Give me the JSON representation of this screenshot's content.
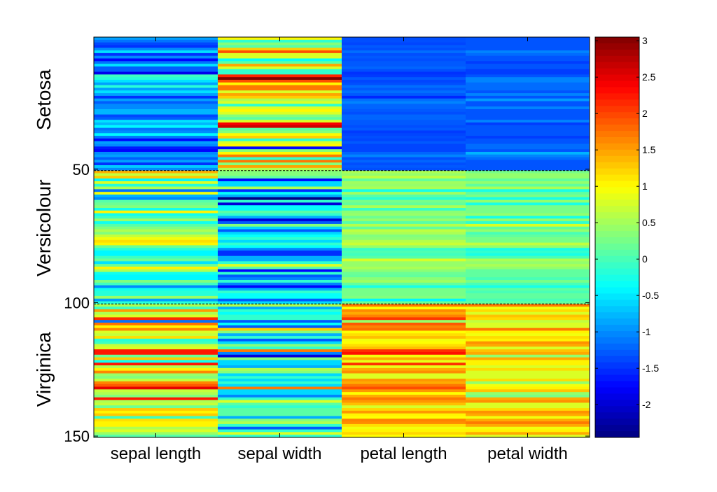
{
  "chart_data": {
    "type": "heatmap",
    "title": "",
    "colormap": "jet",
    "clim": [
      -2.45,
      3.05
    ],
    "columns": [
      "sepal length",
      "sepal width",
      "petal length",
      "petal width"
    ],
    "group_labels": [
      "Setosa",
      "Versicolour",
      "Virginica"
    ],
    "y_ticks": [
      50,
      100,
      150
    ],
    "y_tick_labels": [
      "50",
      "100",
      "150"
    ],
    "y_range": [
      0.5,
      150.5
    ],
    "group_separators": [
      50,
      100,
      150
    ],
    "colorbar_ticks": [
      3,
      2.5,
      2,
      1.5,
      1,
      0.5,
      0,
      -0.5,
      -1,
      -1.5,
      -2
    ],
    "colorbar_tick_labels": [
      "3",
      "2.5",
      "2",
      "1.5",
      "1",
      "0.5",
      "0",
      "-0.5",
      "-1",
      "-1.5",
      "-2"
    ],
    "values": [
      [
        -0.9,
        -1.14,
        -1.38,
        -1.5,
        -1.02,
        -0.54,
        -1.5,
        -1.02,
        -1.74,
        -1.14,
        -0.54,
        -1.26,
        -1.26,
        -1.86,
        -0.06,
        -0.18,
        -0.54,
        -0.9,
        -0.18,
        -0.9,
        -0.54,
        -0.9,
        -1.5,
        -0.9,
        -1.26,
        -1.02,
        -1.02,
        -0.78,
        -0.78,
        -1.38,
        -1.26,
        -0.54,
        -0.78,
        -0.42,
        -1.14,
        -1.02,
        -0.42,
        -1.14,
        -1.74,
        -0.9,
        -1.02,
        -1.62,
        -1.74,
        -1.02,
        -0.9,
        -1.26,
        -0.9,
        -1.5,
        -0.66,
        -1.02
      ],
      [
        1.02,
        -0.13,
        0.33,
        0.1,
        1.25,
        1.94,
        0.79,
        0.79,
        -0.36,
        0.1,
        1.48,
        0.79,
        -0.13,
        -0.13,
        2.17,
        3.09,
        1.94,
        1.02,
        1.71,
        1.71,
        0.79,
        1.48,
        1.25,
        0.56,
        0.79,
        -0.13,
        0.79,
        1.02,
        0.79,
        0.33,
        0.1,
        0.79,
        2.4,
        2.63,
        0.1,
        0.33,
        1.02,
        1.25,
        -0.13,
        0.79,
        1.02,
        -1.74,
        0.33,
        1.02,
        1.71,
        -0.13,
        1.71,
        0.33,
        1.48,
        0.56
      ],
      [
        -1.34,
        -1.34,
        -1.39,
        -1.28,
        -1.34,
        -1.17,
        -1.34,
        -1.28,
        -1.34,
        -1.28,
        -1.28,
        -1.22,
        -1.34,
        -1.5,
        -1.45,
        -1.28,
        -1.39,
        -1.34,
        -1.17,
        -1.28,
        -1.17,
        -1.28,
        -1.56,
        -1.17,
        -1.05,
        -1.22,
        -1.22,
        -1.28,
        -1.34,
        -1.22,
        -1.22,
        -1.28,
        -1.28,
        -1.34,
        -1.28,
        -1.45,
        -1.39,
        -1.34,
        -1.39,
        -1.28,
        -1.39,
        -1.39,
        -1.39,
        -1.22,
        -1.05,
        -1.34,
        -1.22,
        -1.34,
        -1.28,
        -1.34
      ],
      [
        -1.31,
        -1.31,
        -1.31,
        -1.31,
        -1.31,
        -1.05,
        -1.18,
        -1.31,
        -1.31,
        -1.44,
        -1.31,
        -1.31,
        -1.44,
        -1.44,
        -1.31,
        -1.05,
        -1.05,
        -1.18,
        -1.18,
        -1.18,
        -1.31,
        -1.05,
        -1.31,
        -0.92,
        -1.31,
        -1.31,
        -1.05,
        -1.31,
        -1.31,
        -1.31,
        -1.31,
        -1.05,
        -1.44,
        -1.31,
        -1.31,
        -1.31,
        -1.31,
        -1.44,
        -1.31,
        -1.31,
        -1.18,
        -1.18,
        -1.31,
        -0.79,
        -1.05,
        -1.18,
        -1.31,
        -1.31,
        -1.31,
        -1.31
      ],
      [
        1.4,
        0.67,
        1.28,
        -0.42,
        0.79,
        -0.18,
        0.55,
        -1.14,
        0.92,
        -0.78,
        -1.02,
        0.07,
        0.19,
        0.31,
        -0.3,
        1.04,
        -0.3,
        -0.06,
        0.43,
        -0.3,
        0.07,
        0.31,
        0.55,
        0.31,
        0.67,
        0.92,
        1.16,
        1.04,
        0.19,
        -0.18,
        -0.42,
        -0.42,
        -0.06,
        0.19,
        -0.54,
        0.19,
        1.04,
        0.55,
        -0.3,
        -0.42,
        -0.42,
        0.31,
        -0.06,
        -1.02,
        -0.3,
        -0.18,
        -0.18,
        0.43,
        -0.9,
        -0.18
      ],
      [
        0.33,
        0.33,
        0.1,
        -1.74,
        -0.59,
        -0.59,
        0.56,
        -1.51,
        -0.36,
        -0.82,
        -2.43,
        -0.13,
        -1.97,
        -0.36,
        -0.36,
        0.1,
        -0.13,
        -0.82,
        -1.97,
        -1.28,
        0.33,
        -0.59,
        -1.28,
        -0.59,
        -0.36,
        -0.13,
        -0.59,
        -0.13,
        -0.36,
        -1.05,
        -1.51,
        -1.51,
        -0.82,
        -0.82,
        -0.13,
        0.79,
        0.1,
        -1.74,
        -0.13,
        -1.28,
        -1.05,
        -0.13,
        -1.05,
        -1.74,
        -0.82,
        -0.13,
        -0.36,
        -0.36,
        -1.28,
        -0.59
      ],
      [
        0.53,
        0.42,
        0.64,
        0.14,
        0.47,
        0.42,
        0.53,
        -0.26,
        0.47,
        0.08,
        -0.15,
        0.25,
        0.14,
        0.53,
        -0.09,
        0.36,
        0.42,
        0.19,
        0.42,
        0.08,
        0.59,
        0.14,
        0.64,
        0.53,
        0.31,
        0.36,
        0.59,
        0.7,
        0.42,
        -0.09,
        0.03,
        -0.04,
        0.08,
        0.76,
        0.42,
        0.42,
        0.53,
        0.36,
        0.19,
        0.14,
        0.36,
        0.47,
        0.14,
        -0.26,
        0.25,
        0.25,
        0.25,
        0.31,
        -0.43,
        0.19
      ],
      [
        0.26,
        0.4,
        0.4,
        0.13,
        0.4,
        0.13,
        0.53,
        -0.26,
        0.13,
        0.26,
        -0.26,
        0.4,
        -0.26,
        0.26,
        0.26,
        0.26,
        0.4,
        -0.26,
        0.4,
        -0.13,
        0.79,
        0.13,
        0.4,
        0.0,
        0.13,
        0.26,
        0.26,
        0.66,
        0.4,
        -0.26,
        -0.13,
        -0.26,
        0.0,
        0.53,
        0.4,
        0.53,
        0.4,
        0.13,
        0.13,
        0.13,
        0.0,
        0.26,
        0.0,
        -0.26,
        0.13,
        0.0,
        0.13,
        0.13,
        0.0,
        0.13
      ],
      [
        0.55,
        -0.06,
        1.52,
        0.55,
        0.79,
        2.13,
        -1.14,
        1.76,
        1.04,
        1.64,
        0.79,
        0.67,
        1.16,
        -0.18,
        -0.06,
        0.67,
        0.79,
        2.25,
        2.25,
        0.19,
        1.28,
        -0.3,
        2.25,
        0.55,
        1.04,
        1.64,
        0.43,
        0.31,
        0.67,
        1.64,
        1.88,
        2.49,
        0.67,
        0.55,
        0.31,
        2.25,
        0.55,
        0.67,
        0.19,
        1.28,
        1.04,
        1.28,
        -0.06,
        1.16,
        1.04,
        1.04,
        0.55,
        0.79,
        0.43,
        0.07
      ],
      [
        0.56,
        -0.82,
        -0.13,
        -0.36,
        -0.13,
        -0.13,
        -1.28,
        -0.36,
        -1.28,
        1.25,
        0.33,
        -0.82,
        -0.13,
        -1.28,
        -0.59,
        0.33,
        -0.13,
        1.71,
        -1.05,
        -1.97,
        0.33,
        -0.59,
        -0.59,
        -0.82,
        0.56,
        0.33,
        -0.59,
        -0.13,
        -0.59,
        -0.13,
        -0.59,
        1.71,
        -0.59,
        -0.59,
        -1.05,
        -0.13,
        0.79,
        0.1,
        -0.13,
        0.1,
        0.1,
        0.1,
        -0.82,
        0.33,
        0.56,
        -0.13,
        -1.28,
        -0.13,
        0.79,
        -0.13
      ],
      [
        1.72,
        0.98,
        1.61,
        1.44,
        1.66,
        2.06,
        0.42,
        1.89,
        1.66,
        1.78,
        0.98,
        1.16,
        1.33,
        0.93,
        0.98,
        1.16,
        1.33,
        2.11,
        2.28,
        0.93,
        1.44,
        0.87,
        2.11,
        0.87,
        1.44,
        1.61,
        0.81,
        0.81,
        1.55,
        1.44,
        1.72,
        1.95,
        1.55,
        0.98,
        1.44,
        1.72,
        1.55,
        1.33,
        0.76,
        1.21,
        1.55,
        1.04,
        0.98,
        1.66,
        1.61,
        1.16,
        0.93,
        1.04,
        1.21,
        0.98
      ],
      [
        1.71,
        0.92,
        1.18,
        0.79,
        1.31,
        1.18,
        0.66,
        0.79,
        0.79,
        1.71,
        1.05,
        0.92,
        1.18,
        1.05,
        1.58,
        1.45,
        0.79,
        1.31,
        1.45,
        0.4,
        1.45,
        1.05,
        1.05,
        0.79,
        1.18,
        0.79,
        0.79,
        0.79,
        1.18,
        0.4,
        0.92,
        1.05,
        1.31,
        0.4,
        0.26,
        1.45,
        1.58,
        0.79,
        0.79,
        1.18,
        1.58,
        1.45,
        0.92,
        1.45,
        1.71,
        1.45,
        0.92,
        1.05,
        1.45,
        0.79
      ]
    ]
  }
}
